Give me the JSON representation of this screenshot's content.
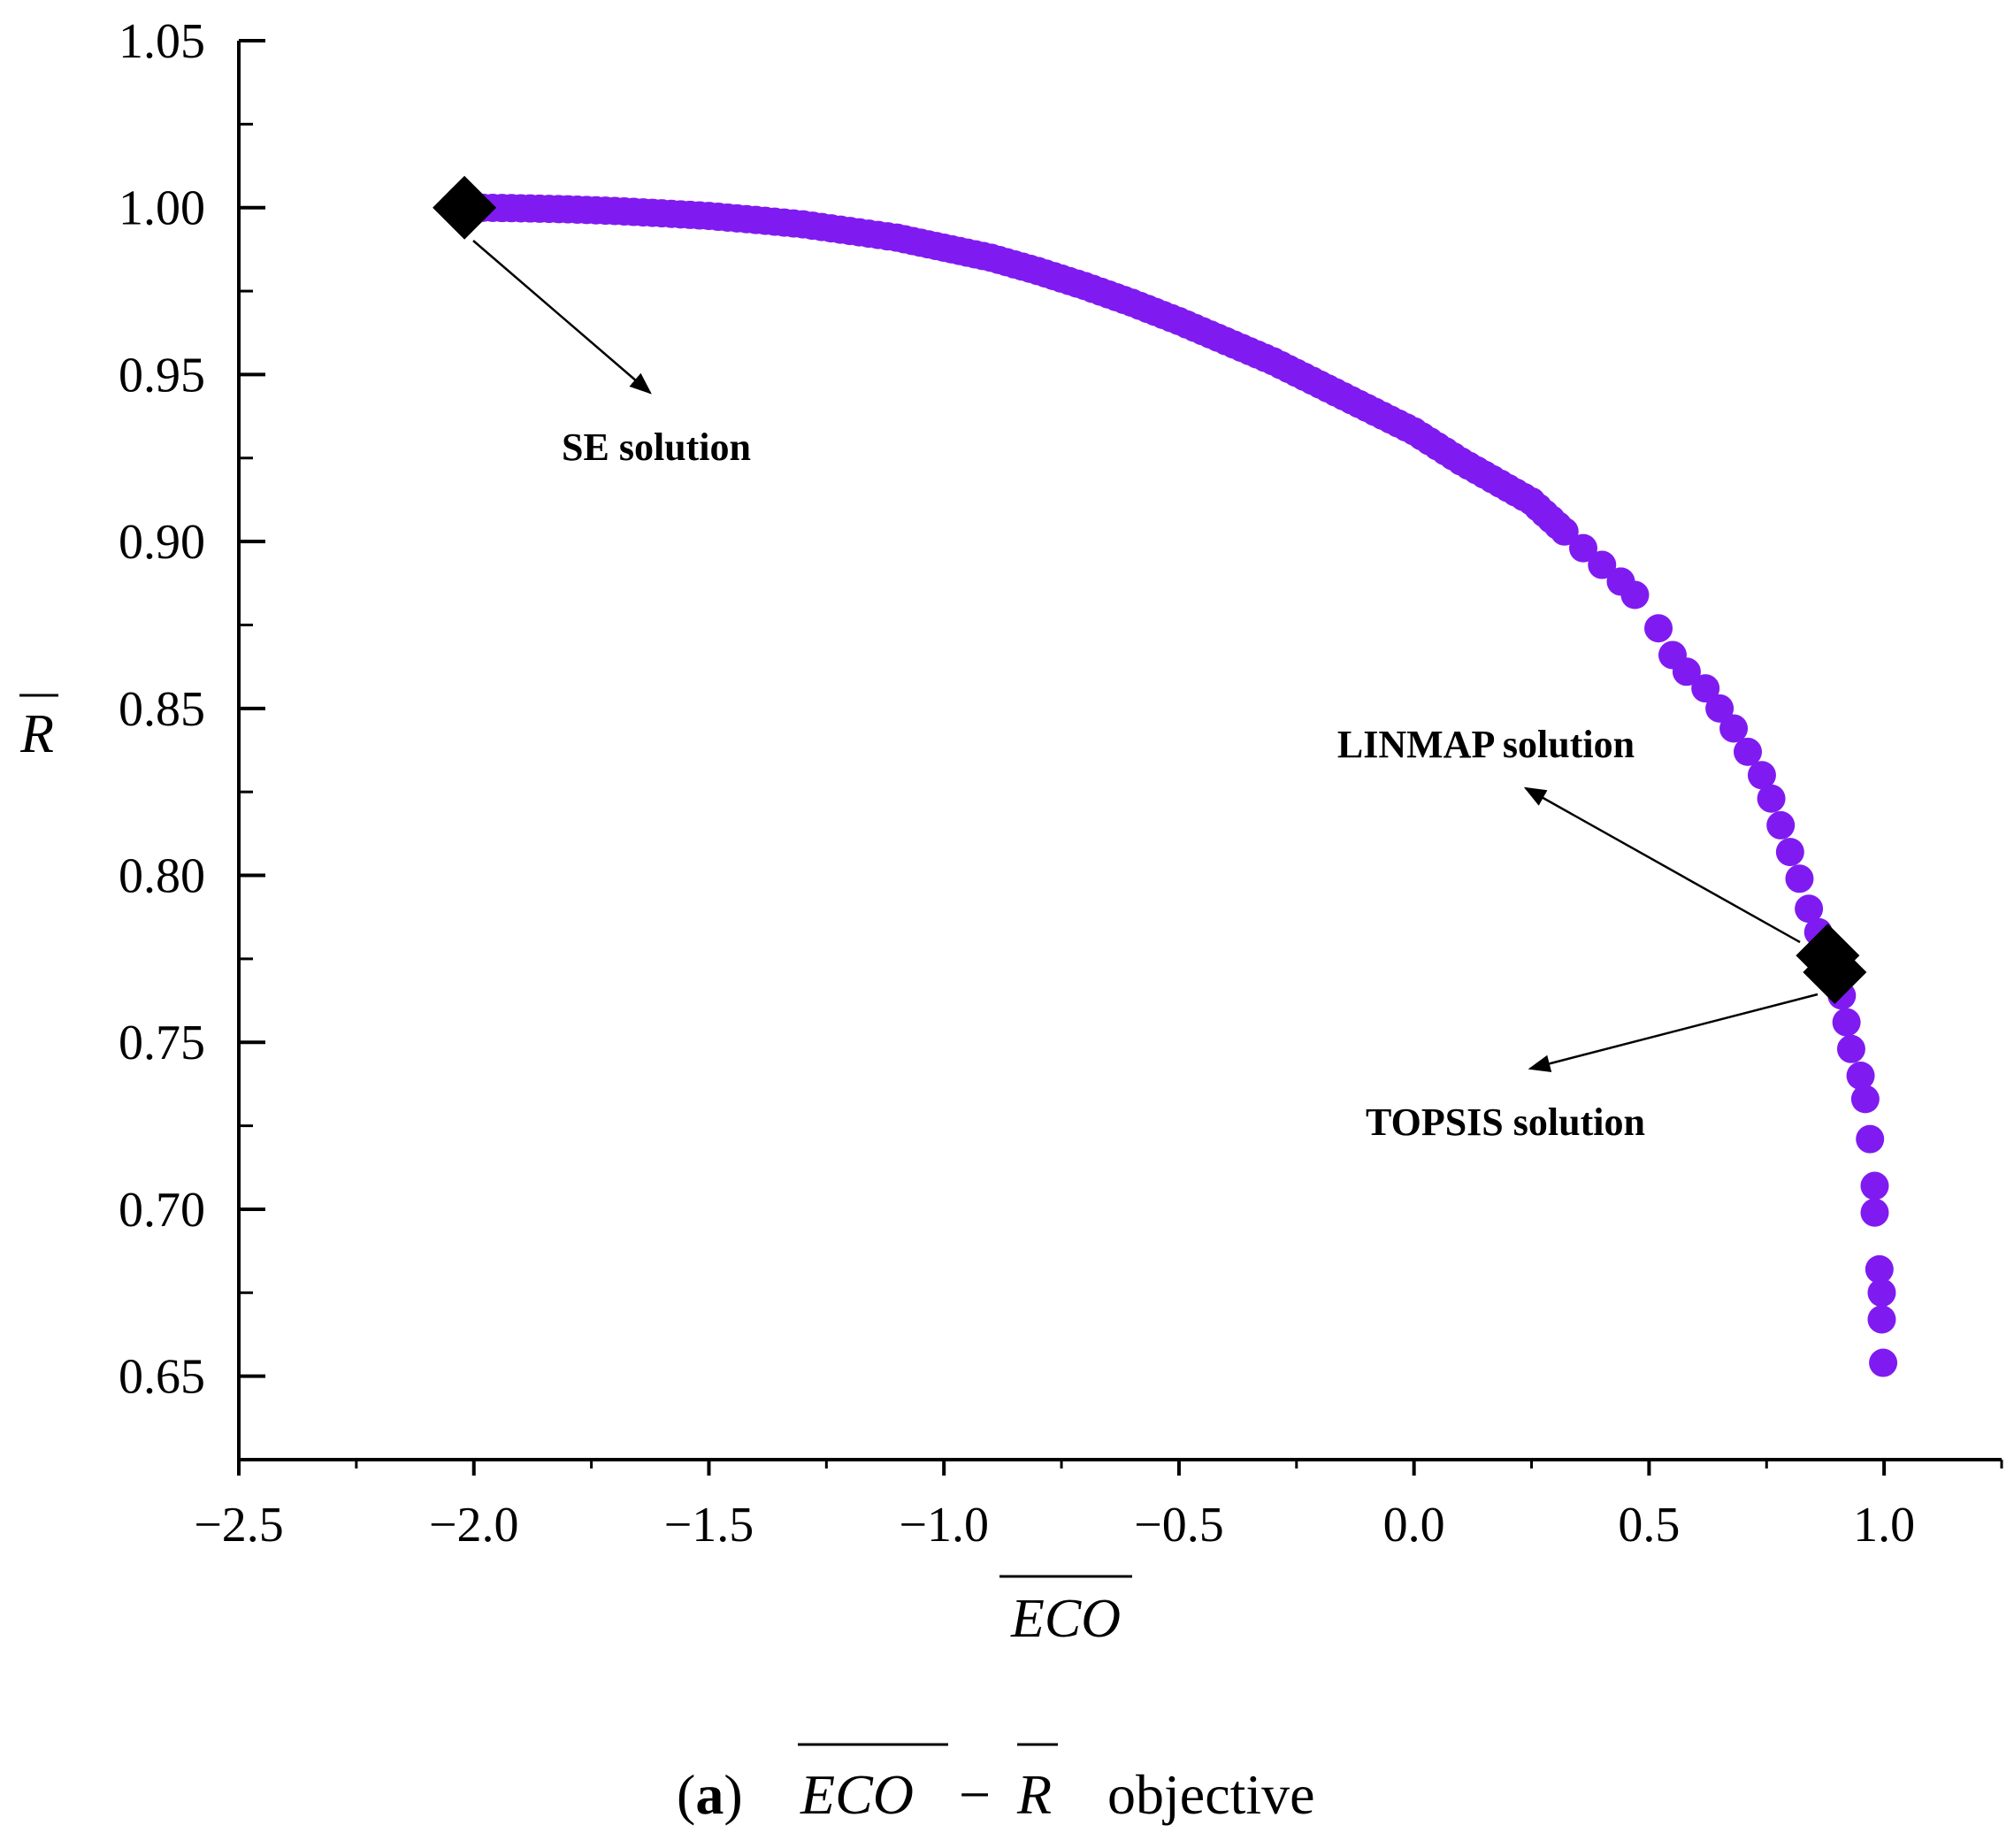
{
  "chart_data": {
    "type": "scatter",
    "title": "",
    "xlabel": "ECO",
    "ylabel": "R",
    "xlim": [
      -2.5,
      1.25
    ],
    "ylim": [
      0.625,
      1.05
    ],
    "x_ticks": [
      "−2.5",
      "−2.0",
      "−1.5",
      "−1.0",
      "−0.5",
      "0.0",
      "0.5",
      "1.0"
    ],
    "y_ticks": [
      "1.05",
      "1.00",
      "0.95",
      "0.90",
      "0.85",
      "0.80",
      "0.75",
      "0.70",
      "0.65"
    ],
    "grid": false,
    "legend": "none",
    "point_color": "#7f1bf0",
    "marker_color": "#000000",
    "series": [
      {
        "values": [
          [
            -2.0,
            1.0
          ],
          [
            -1.9,
            0.9998
          ],
          [
            -1.8,
            0.9995
          ],
          [
            -1.7,
            0.999
          ],
          [
            -1.6,
            0.9983
          ],
          [
            -1.5,
            0.9975
          ],
          [
            -1.4,
            0.9963
          ],
          [
            -1.3,
            0.995
          ],
          [
            -1.2,
            0.993
          ],
          [
            -1.1,
            0.991
          ],
          [
            -1.0,
            0.988
          ],
          [
            -0.9,
            0.985
          ],
          [
            -0.8,
            0.981
          ],
          [
            -0.7,
            0.9765
          ],
          [
            -0.6,
            0.9715
          ],
          [
            -0.5,
            0.966
          ],
          [
            -0.4,
            0.96
          ],
          [
            -0.3,
            0.954
          ],
          [
            -0.2,
            0.947
          ],
          [
            -0.1,
            0.94
          ],
          [
            0.0,
            0.933
          ],
          [
            0.05,
            0.9285
          ],
          [
            0.1,
            0.924
          ],
          [
            0.15,
            0.92
          ],
          [
            0.2,
            0.916
          ],
          [
            0.25,
            0.912
          ],
          [
            0.32,
            0.903
          ],
          [
            0.36,
            0.898
          ],
          [
            0.4,
            0.893
          ],
          [
            0.44,
            0.888
          ],
          [
            0.47,
            0.884
          ],
          [
            0.52,
            0.874
          ],
          [
            0.55,
            0.866
          ],
          [
            0.58,
            0.861
          ],
          [
            0.62,
            0.856
          ],
          [
            0.65,
            0.85
          ],
          [
            0.68,
            0.844
          ],
          [
            0.71,
            0.837
          ],
          [
            0.74,
            0.83
          ],
          [
            0.76,
            0.823
          ],
          [
            0.78,
            0.815
          ],
          [
            0.8,
            0.807
          ],
          [
            0.82,
            0.799
          ],
          [
            0.84,
            0.79
          ],
          [
            0.86,
            0.783
          ],
          [
            0.88,
            0.776
          ],
          [
            0.9,
            0.77
          ],
          [
            0.91,
            0.764
          ],
          [
            0.92,
            0.756
          ],
          [
            0.93,
            0.748
          ],
          [
            0.95,
            0.74
          ],
          [
            0.96,
            0.733
          ],
          [
            0.97,
            0.721
          ],
          [
            0.98,
            0.707
          ],
          [
            0.98,
            0.699
          ],
          [
            0.99,
            0.682
          ],
          [
            0.995,
            0.675
          ],
          [
            0.995,
            0.667
          ],
          [
            0.998,
            0.654
          ]
        ]
      }
    ],
    "highlight_points": [
      {
        "x": -2.02,
        "y": 1.0
      },
      {
        "x": 0.88,
        "y": 0.776
      },
      {
        "x": 0.895,
        "y": 0.771
      }
    ],
    "annotations": [
      {
        "text": "SE solution",
        "target": [
          -2.02,
          1.0
        ],
        "text_at": [
          -1.6,
          0.936
        ]
      },
      {
        "text": "LINMAP solution",
        "target": [
          0.88,
          0.776
        ],
        "text_at": [
          0.15,
          0.842
        ]
      },
      {
        "text": "TOPSIS solution",
        "target": [
          0.895,
          0.771
        ],
        "text_at": [
          0.2,
          0.728
        ]
      }
    ]
  },
  "caption": {
    "label": "a",
    "objective_word": "objective",
    "eco_text": "ECO",
    "minus": "−",
    "r_text": "R"
  }
}
